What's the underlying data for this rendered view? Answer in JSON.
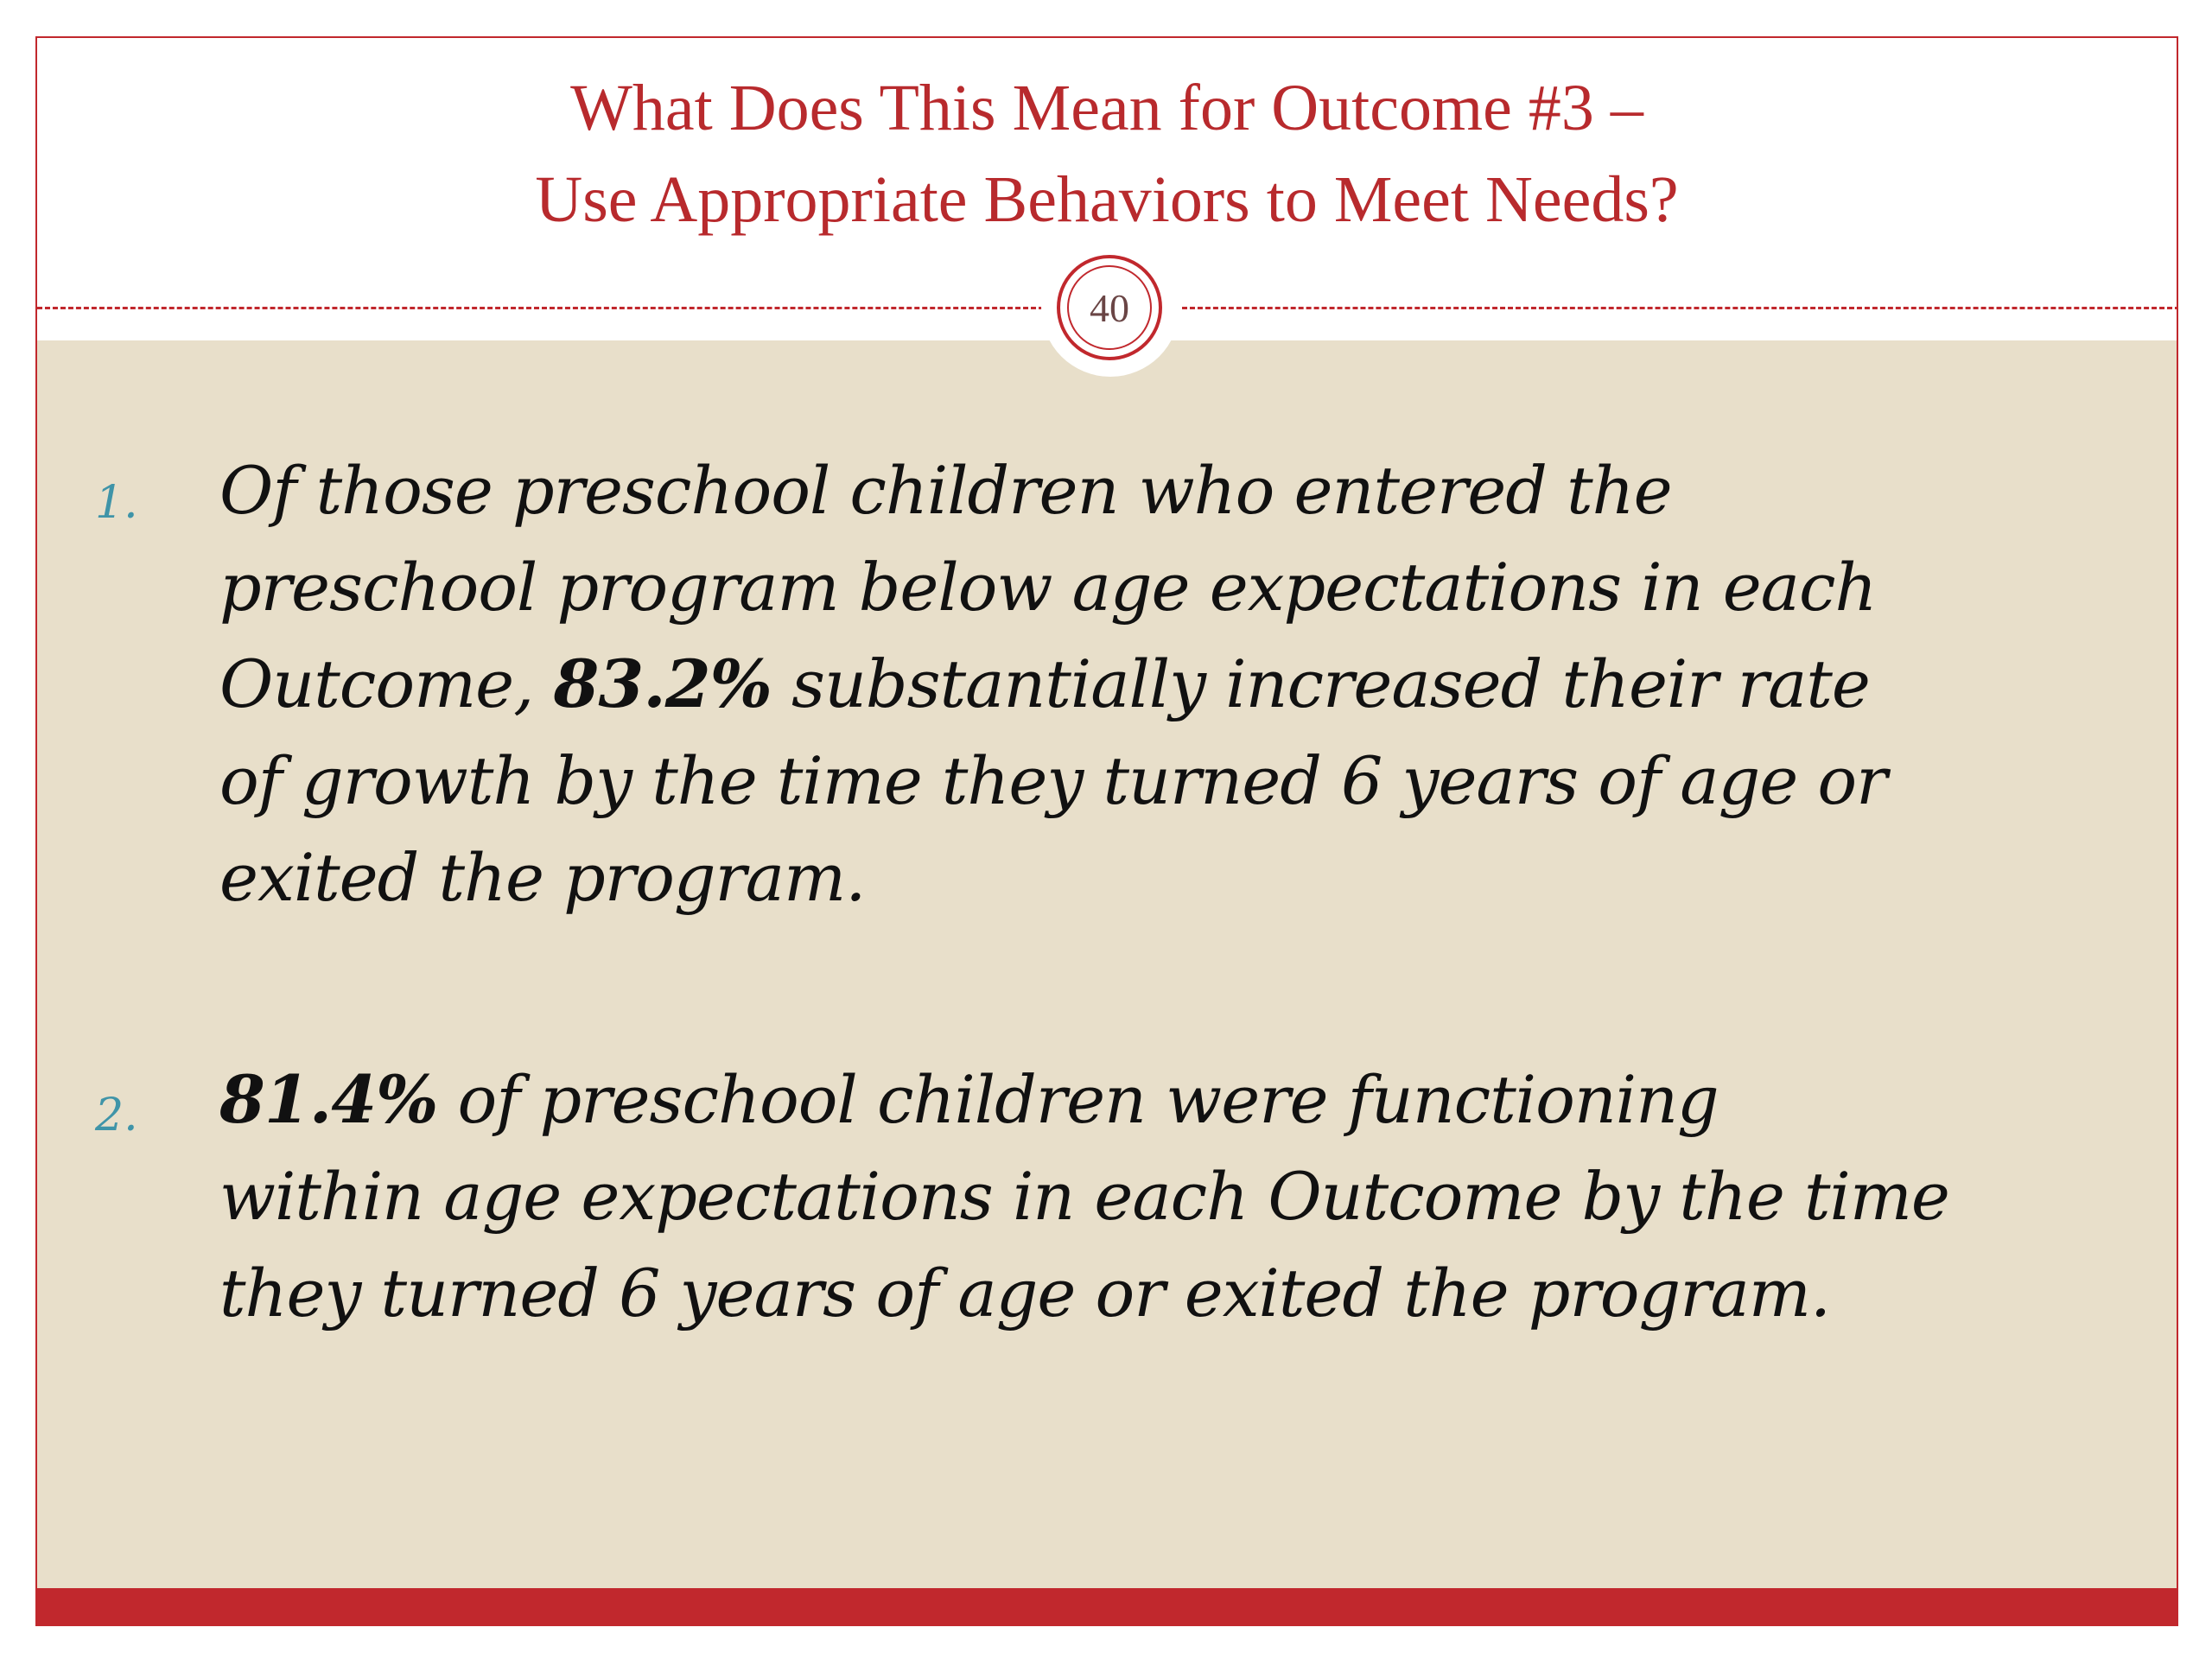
{
  "slide": {
    "title_line_1": "What Does This Mean for Outcome #3 –",
    "title_line_2": "Use Appropriate Behaviors to Meet Needs?",
    "page_number": "40"
  },
  "list": {
    "items": [
      {
        "number": "1.",
        "lines": [
          "Of those preschool children who entered the",
          "preschool program below age expectations in each",
          "Outcome, ",
          "83.2%",
          " substantially increased their rate",
          "of growth by the time they turned 6 years of age or",
          "exited the program."
        ]
      },
      {
        "number": "2.",
        "lines": [
          "81.4%",
          " of preschool children were functioning",
          "within age expectations in each Outcome by the time",
          "they turned 6 years of age or exited the program."
        ]
      }
    ]
  },
  "colors": {
    "accent_red": "#c1282d",
    "title_red": "#b82a2d",
    "content_background": "#e8dfca",
    "number_teal": "#3f94a8"
  }
}
